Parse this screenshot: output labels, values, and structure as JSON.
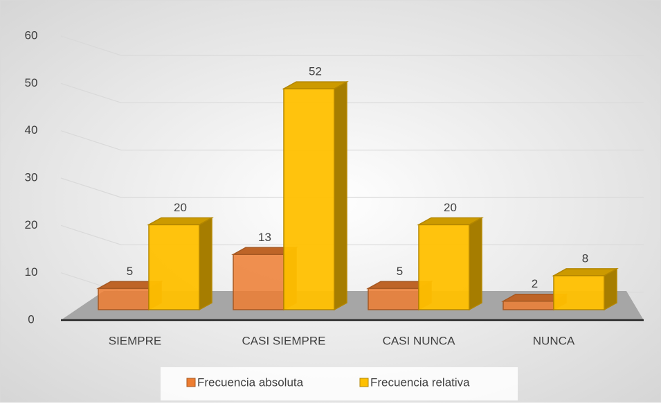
{
  "chart_data": {
    "type": "bar3d",
    "categories": [
      "SIEMPRE",
      "CASI SIEMPRE",
      "CASI NUNCA",
      "NUNCA"
    ],
    "series": [
      {
        "name": "Frecuencia absoluta",
        "color": "#ed7d31",
        "values": [
          5,
          13,
          5,
          2
        ]
      },
      {
        "name": "Frecuencia relativa",
        "color": "#ffc000",
        "values": [
          20,
          52,
          20,
          8
        ]
      }
    ],
    "ylim": [
      0,
      60
    ],
    "yticks": [
      0,
      10,
      20,
      30,
      40,
      50,
      60
    ],
    "grid": true,
    "legend": "bottom"
  }
}
